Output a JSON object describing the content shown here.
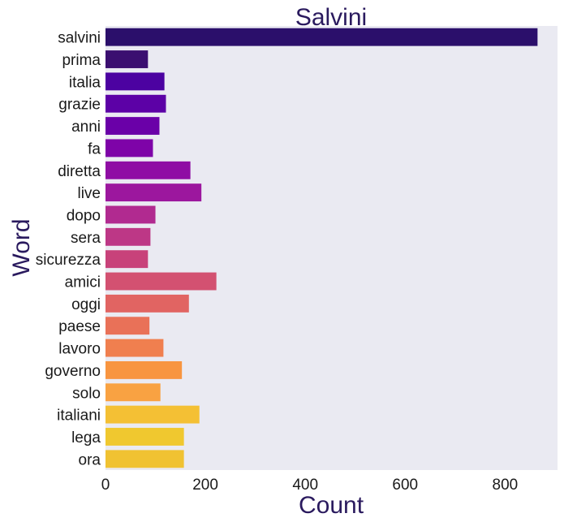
{
  "chart_data": {
    "type": "bar",
    "orientation": "horizontal",
    "title": "Salvini",
    "xlabel": "Count",
    "ylabel": "Word",
    "categories": [
      "salvini",
      "prima",
      "italia",
      "grazie",
      "anni",
      "fa",
      "diretta",
      "live",
      "dopo",
      "sera",
      "sicurezza",
      "amici",
      "oggi",
      "paese",
      "lavoro",
      "governo",
      "solo",
      "italiani",
      "lega",
      "ora"
    ],
    "values": [
      865,
      85,
      118,
      121,
      108,
      95,
      170,
      192,
      100,
      90,
      85,
      222,
      167,
      88,
      116,
      153,
      110,
      188,
      157,
      157
    ],
    "xlim": [
      0,
      905
    ],
    "xticks": [
      "0",
      "200",
      "400",
      "600",
      "800"
    ],
    "grid": false,
    "colors": [
      "#2b0f6b",
      "#3b0f70",
      "#4c02a1",
      "#5c01a6",
      "#6a00a8",
      "#7e03a8",
      "#8f0da4",
      "#9c179e",
      "#b12a90",
      "#bd3786",
      "#c8427a",
      "#d35171",
      "#e16462",
      "#e97158",
      "#f07f4f",
      "#f89540",
      "#f9a242",
      "#f4c034",
      "#f0c82f",
      "#f0c232"
    ],
    "title_color": "#2a1a5e",
    "plot_background": "#eaeaf2"
  }
}
